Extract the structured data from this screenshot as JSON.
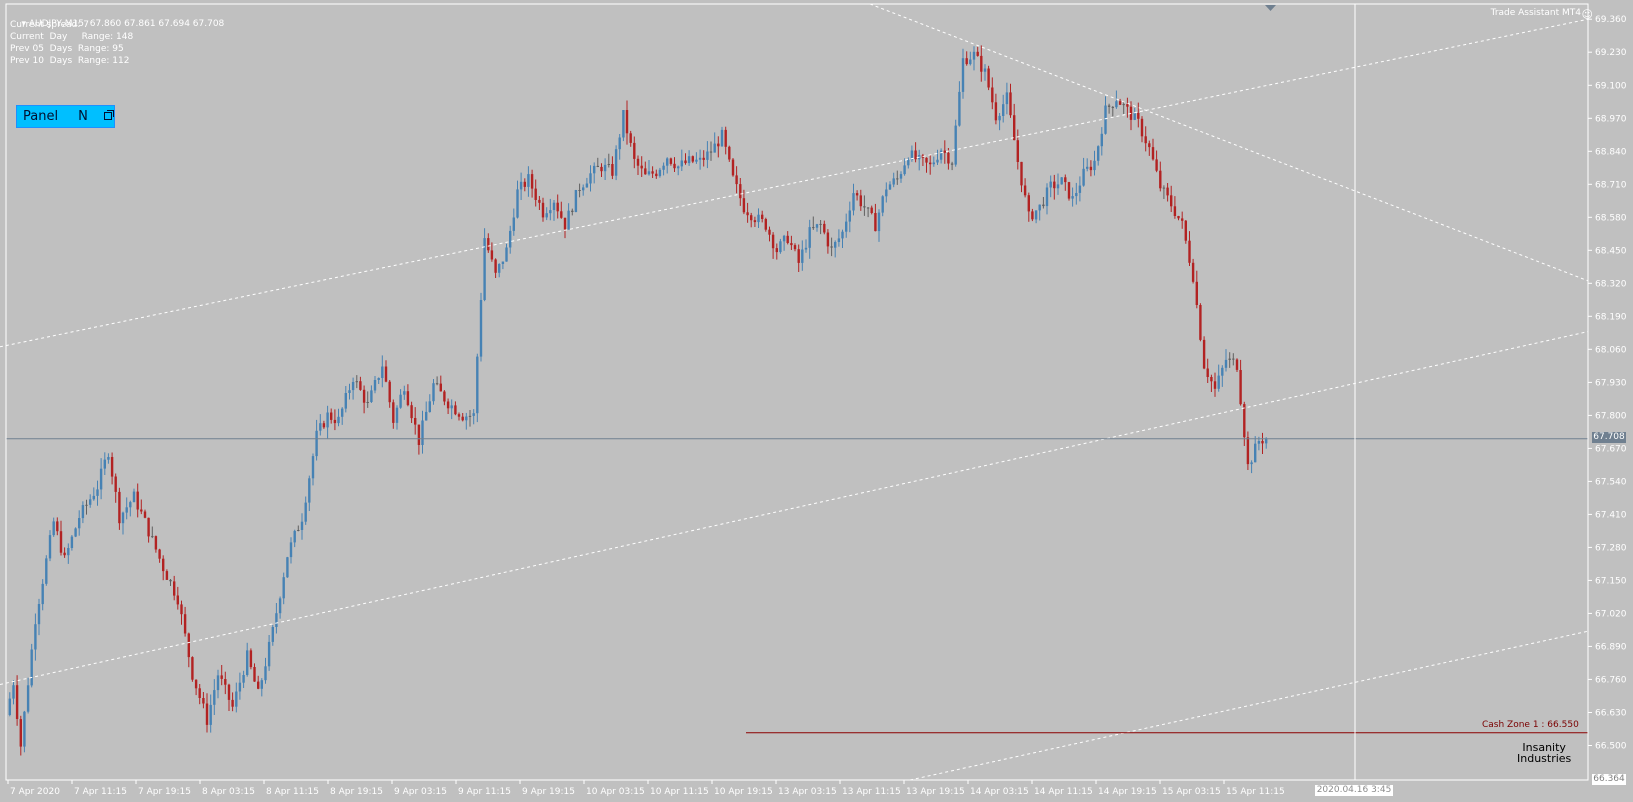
{
  "symbol_header": {
    "title": "AUDJPY,M15",
    "ohlc": "67.860 67.861 67.694 67.708"
  },
  "info_lines": [
    "Current spread: 7",
    "Current  Day     Range: 148",
    "Prev 05  Days  Range: 95",
    "Prev 10  Days  Range: 112"
  ],
  "panel": {
    "label": "Panel",
    "shortcut": "N",
    "icon": "restore-icon"
  },
  "trade_assistant": {
    "label": "Trade Assistant MT4",
    "icon": "smiley-icon"
  },
  "price_axis": {
    "labels": [
      "69.360",
      "69.230",
      "69.100",
      "68.970",
      "68.840",
      "68.710",
      "68.580",
      "68.450",
      "68.320",
      "68.190",
      "68.060",
      "67.930",
      "67.800",
      "67.670",
      "67.540",
      "67.410",
      "67.280",
      "67.150",
      "67.020",
      "66.890",
      "66.760",
      "66.630",
      "66.500"
    ],
    "current_price": "67.708",
    "bottom_price": "66.364"
  },
  "time_axis": {
    "labels": [
      "7 Apr 2020",
      "7 Apr 11:15",
      "7 Apr 19:15",
      "8 Apr 03:15",
      "8 Apr 11:15",
      "8 Apr 19:15",
      "9 Apr 03:15",
      "9 Apr 11:15",
      "9 Apr 19:15",
      "10 Apr 03:15",
      "10 Apr 11:15",
      "10 Apr 19:15",
      "13 Apr 03:15",
      "13 Apr 11:15",
      "13 Apr 19:15",
      "14 Apr 03:15",
      "14 Apr 11:15",
      "14 Apr 19:15",
      "15 Apr 03:15",
      "15 Apr 11:15"
    ],
    "crosshair_date": "2020.04.16 3:45"
  },
  "cash_zone": {
    "label": "Cash Zone 1 : 66.550",
    "price": 66.55
  },
  "logo": {
    "line1": "Insanity",
    "line2": "Industries"
  },
  "colors": {
    "background": "#c0c0c0",
    "bull": "#4682b4",
    "bear": "#b22222",
    "doji": "#606060",
    "current_price_line": "#708090",
    "cash_zone": "#8b0000",
    "trendlines": "#ffffff"
  },
  "chart_data": {
    "type": "candlestick",
    "series": "AUDJPY M15",
    "ylim": [
      66.364,
      69.42
    ],
    "current_price": 67.708,
    "path_points": [
      [
        0,
        66.62
      ],
      [
        2,
        66.75
      ],
      [
        4,
        66.5
      ],
      [
        8,
        67.0
      ],
      [
        13,
        67.38
      ],
      [
        16,
        67.23
      ],
      [
        20,
        67.4
      ],
      [
        25,
        67.52
      ],
      [
        28,
        67.66
      ],
      [
        31,
        67.4
      ],
      [
        35,
        67.48
      ],
      [
        38,
        67.38
      ],
      [
        43,
        67.2
      ],
      [
        47,
        67.08
      ],
      [
        51,
        66.78
      ],
      [
        55,
        66.6
      ],
      [
        58,
        66.78
      ],
      [
        62,
        66.65
      ],
      [
        66,
        66.85
      ],
      [
        69,
        66.7
      ],
      [
        73,
        66.95
      ],
      [
        77,
        67.25
      ],
      [
        81,
        67.4
      ],
      [
        85,
        67.72
      ],
      [
        88,
        67.8
      ],
      [
        91,
        67.78
      ],
      [
        95,
        67.95
      ],
      [
        99,
        67.84
      ],
      [
        103,
        68.0
      ],
      [
        106,
        67.78
      ],
      [
        109,
        67.92
      ],
      [
        113,
        67.7
      ],
      [
        117,
        67.92
      ],
      [
        121,
        67.85
      ],
      [
        125,
        67.8
      ],
      [
        128,
        67.8
      ],
      [
        131,
        68.5
      ],
      [
        134,
        68.35
      ],
      [
        137,
        68.45
      ],
      [
        140,
        68.68
      ],
      [
        143,
        68.73
      ],
      [
        147,
        68.6
      ],
      [
        150,
        68.65
      ],
      [
        153,
        68.55
      ],
      [
        157,
        68.7
      ],
      [
        160,
        68.75
      ],
      [
        163,
        68.78
      ],
      [
        166,
        68.76
      ],
      [
        169,
        68.98
      ],
      [
        172,
        68.8
      ],
      [
        175,
        68.74
      ],
      [
        178,
        68.76
      ],
      [
        181,
        68.82
      ],
      [
        184,
        68.78
      ],
      [
        187,
        68.8
      ],
      [
        190,
        68.8
      ],
      [
        193,
        68.84
      ],
      [
        196,
        68.9
      ],
      [
        199,
        68.73
      ],
      [
        202,
        68.62
      ],
      [
        205,
        68.58
      ],
      [
        208,
        68.55
      ],
      [
        211,
        68.45
      ],
      [
        214,
        68.5
      ],
      [
        217,
        68.4
      ],
      [
        220,
        68.52
      ],
      [
        223,
        68.55
      ],
      [
        226,
        68.45
      ],
      [
        229,
        68.52
      ],
      [
        232,
        68.68
      ],
      [
        235,
        68.62
      ],
      [
        238,
        68.55
      ],
      [
        241,
        68.7
      ],
      [
        244,
        68.73
      ],
      [
        247,
        68.83
      ],
      [
        250,
        68.8
      ],
      [
        253,
        68.78
      ],
      [
        256,
        68.85
      ],
      [
        259,
        68.8
      ],
      [
        262,
        69.2
      ],
      [
        265,
        69.22
      ],
      [
        268,
        69.15
      ],
      [
        271,
        68.98
      ],
      [
        274,
        69.05
      ],
      [
        277,
        68.8
      ],
      [
        280,
        68.58
      ],
      [
        283,
        68.62
      ],
      [
        286,
        68.7
      ],
      [
        289,
        68.72
      ],
      [
        292,
        68.65
      ],
      [
        295,
        68.75
      ],
      [
        298,
        68.8
      ],
      [
        301,
        69.0
      ],
      [
        304,
        69.05
      ],
      [
        307,
        69.0
      ],
      [
        310,
        68.95
      ],
      [
        313,
        68.85
      ],
      [
        316,
        68.7
      ],
      [
        319,
        68.63
      ],
      [
        322,
        68.55
      ],
      [
        325,
        68.35
      ],
      [
        328,
        68.0
      ],
      [
        331,
        67.9
      ],
      [
        334,
        68.02
      ],
      [
        337,
        68.0
      ],
      [
        340,
        67.6
      ],
      [
        343,
        67.7
      ],
      [
        345,
        67.71
      ]
    ],
    "trendlines": [
      {
        "from": [
          0,
          68.07
        ],
        "to": [
          1588,
          69.36
        ],
        "style": "dashed"
      },
      {
        "from": [
          870,
          69.42
        ],
        "to": [
          1588,
          68.33
        ],
        "style": "dashed"
      },
      {
        "from": [
          0,
          66.74
        ],
        "to": [
          1588,
          68.13
        ],
        "style": "dashed"
      },
      {
        "from": [
          910,
          66.364
        ],
        "to": [
          1588,
          66.95
        ],
        "style": "dashed"
      }
    ],
    "annotation": "Cash Zone 1 : 66.550"
  }
}
